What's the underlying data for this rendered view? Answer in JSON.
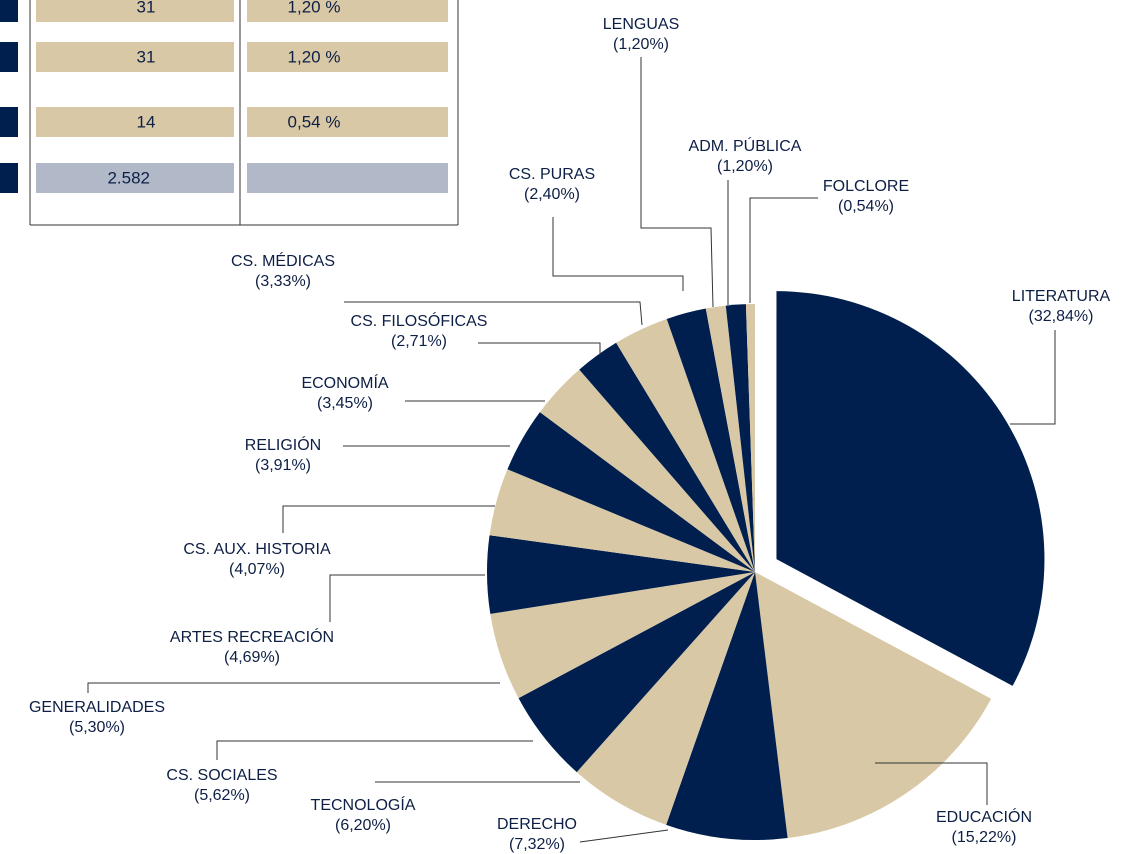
{
  "table": {
    "rows": [
      [
        "31",
        "1,20 %"
      ],
      [
        "31",
        "1,20 %"
      ],
      [
        "14",
        "0,54 %"
      ],
      [
        "2.582"
      ]
    ]
  },
  "chart_data": {
    "type": "pie",
    "categories": [
      "LITERATURA",
      "EDUCACIÓN",
      "DERECHO",
      "TECNOLOGÍA",
      "CS. SOCIALES",
      "GENERALIDADES",
      "ARTES RECREACIÓN",
      "CS. AUX. HISTORIA",
      "RELIGIÓN",
      "ECONOMÍA",
      "CS. FILOSÓFICAS",
      "CS. MÉDICAS",
      "CS. PURAS",
      "LENGUAS",
      "ADM. PÚBLICA",
      "FOLCLORE"
    ],
    "values": [
      32.84,
      15.22,
      7.32,
      6.2,
      5.62,
      5.3,
      4.69,
      4.07,
      3.91,
      3.45,
      2.71,
      3.33,
      2.4,
      1.2,
      1.2,
      0.54
    ],
    "value_labels": [
      "(32,84%)",
      "(15,22%)",
      "(7,32%)",
      "(6,20%)",
      "(5,62%)",
      "(5,30%)",
      "(4,69%)",
      "(4,07%)",
      "(3,91%)",
      "(3,45%)",
      "(2,71%)",
      "(3,33%)",
      "(2,40%)",
      "(1,20%)",
      "(1,20%)",
      "(0,54%)"
    ],
    "colors": [
      "#001f4e",
      "#d9c8a5",
      "#001f4e",
      "#d9c8a5",
      "#001f4e",
      "#d9c8a5",
      "#001f4e",
      "#d9c8a5",
      "#001f4e",
      "#d9c8a5",
      "#001f4e",
      "#d9c8a5",
      "#001f4e",
      "#d9c8a5",
      "#001f4e",
      "#d9c8a5"
    ]
  }
}
